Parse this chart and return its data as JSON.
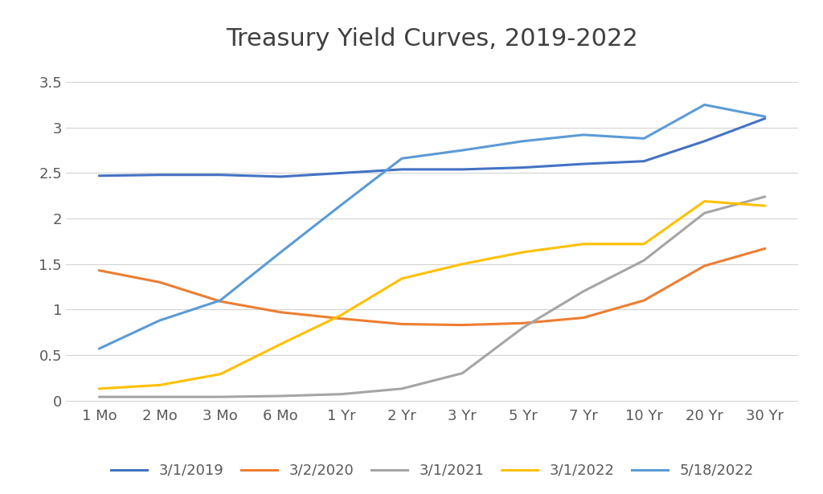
{
  "title": "Treasury Yield Curves, 2019-2022",
  "x_labels": [
    "1 Mo",
    "2 Mo",
    "3 Mo",
    "6 Mo",
    "1 Yr",
    "2 Yr",
    "3 Yr",
    "5 Yr",
    "7 Yr",
    "10 Yr",
    "20 Yr",
    "30 Yr"
  ],
  "series": [
    {
      "label": "3/1/2019",
      "color": "#4472C4",
      "values": [
        2.47,
        2.48,
        2.48,
        2.46,
        2.5,
        2.54,
        2.54,
        2.56,
        2.6,
        2.63,
        2.85,
        3.1
      ]
    },
    {
      "label": "3/2/2020",
      "color": "#ED7D31",
      "values": [
        1.43,
        1.3,
        1.09,
        0.97,
        0.9,
        0.84,
        0.83,
        0.85,
        0.91,
        1.1,
        1.48,
        1.67
      ]
    },
    {
      "label": "3/1/2021",
      "color": "#A5A5A5",
      "values": [
        0.04,
        0.04,
        0.04,
        0.05,
        0.07,
        0.13,
        0.3,
        0.8,
        1.2,
        1.54,
        2.06,
        2.24
      ]
    },
    {
      "label": "3/1/2022",
      "color": "#FFC000",
      "values": [
        0.13,
        0.17,
        0.29,
        0.62,
        0.94,
        1.34,
        1.5,
        1.63,
        1.72,
        1.72,
        2.19,
        2.14
      ]
    },
    {
      "label": "5/18/2022",
      "color": "#5B9BD5",
      "values": [
        0.57,
        0.88,
        1.1,
        1.63,
        2.15,
        2.66,
        2.75,
        2.85,
        2.92,
        2.88,
        3.25,
        3.12
      ]
    }
  ],
  "ylim": [
    -0.05,
    3.75
  ],
  "yticks": [
    0.0,
    0.5,
    1.0,
    1.5,
    2.0,
    2.5,
    3.0,
    3.5
  ],
  "ytick_labels": [
    "0",
    "0.5",
    "1",
    "1.5",
    "2",
    "2.5",
    "3",
    "3.5"
  ],
  "background_color": "#FFFFFF",
  "grid_color": "#D3D3D3",
  "title_fontsize": 22,
  "tick_fontsize": 13,
  "legend_fontsize": 13
}
